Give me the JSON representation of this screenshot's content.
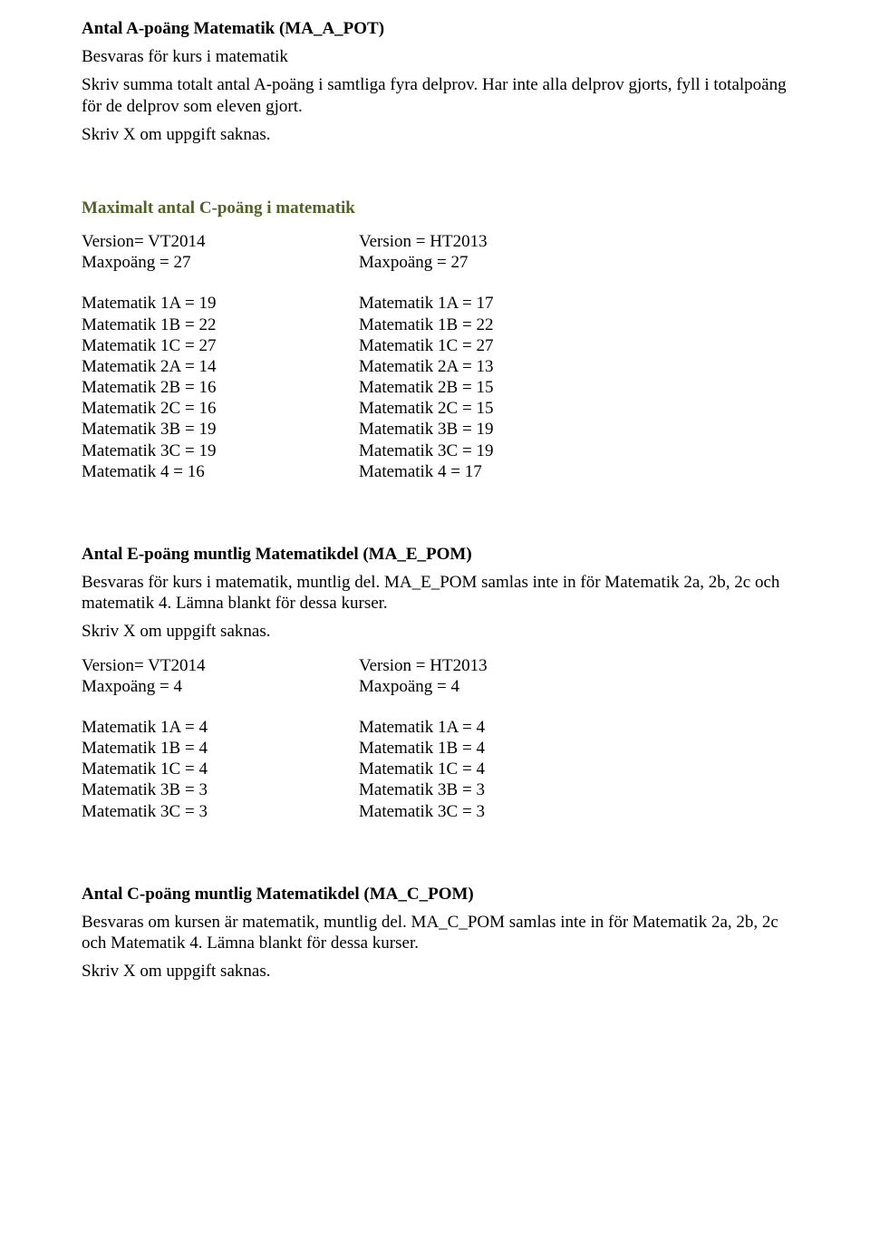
{
  "section1": {
    "heading": "Antal A-poäng Matematik (MA_A_POT)",
    "p1": "Besvaras för kurs i matematik",
    "p2": "Skriv summa totalt antal A-poäng i samtliga fyra delprov. Har inte alla delprov gjorts, fyll i totalpoäng för de delprov som eleven gjort.",
    "p3": "Skriv X om uppgift saknas."
  },
  "section2": {
    "heading": "Maximalt antal C-poäng i matematik",
    "left_header": [
      "Version= VT2014",
      "Maxpoäng = 27"
    ],
    "right_header": [
      "Version = HT2013",
      "Maxpoäng = 27"
    ],
    "left_rows": [
      "Matematik 1A = 19",
      "Matematik 1B = 22",
      "Matematik 1C = 27",
      "Matematik 2A = 14",
      "Matematik 2B = 16",
      "Matematik 2C = 16",
      "Matematik 3B = 19",
      "Matematik 3C = 19",
      "Matematik 4 = 16"
    ],
    "right_rows": [
      "Matematik 1A = 17",
      "Matematik 1B = 22",
      "Matematik 1C = 27",
      "Matematik 2A = 13",
      "Matematik 2B = 15",
      "Matematik 2C = 15",
      "Matematik 3B = 19",
      "Matematik 3C = 19",
      "Matematik 4 = 17"
    ]
  },
  "section3": {
    "heading": "Antal E-poäng muntlig Matematikdel (MA_E_POM)",
    "p1": "Besvaras för kurs i matematik, muntlig del. MA_E_POM samlas inte in för Matematik 2a, 2b, 2c och matematik 4. Lämna blankt för dessa kurser.",
    "p2": "Skriv X om uppgift saknas.",
    "left_header": [
      "Version= VT2014",
      "Maxpoäng = 4"
    ],
    "right_header": [
      "Version = HT2013",
      "Maxpoäng = 4"
    ],
    "left_rows": [
      "Matematik 1A = 4",
      "Matematik 1B = 4",
      "Matematik 1C = 4",
      "Matematik 3B = 3",
      "Matematik 3C = 3"
    ],
    "right_rows": [
      "Matematik 1A = 4",
      "Matematik 1B = 4",
      "Matematik 1C = 4",
      "Matematik 3B = 3",
      "Matematik 3C = 3"
    ]
  },
  "section4": {
    "heading": "Antal C-poäng muntlig Matematikdel (MA_C_POM)",
    "p1": "Besvaras om kursen är matematik, muntlig del. MA_C_POM samlas inte in för Matematik 2a, 2b, 2c och Matematik 4. Lämna blankt för dessa kurser.",
    "p2": "Skriv X om uppgift saknas."
  }
}
